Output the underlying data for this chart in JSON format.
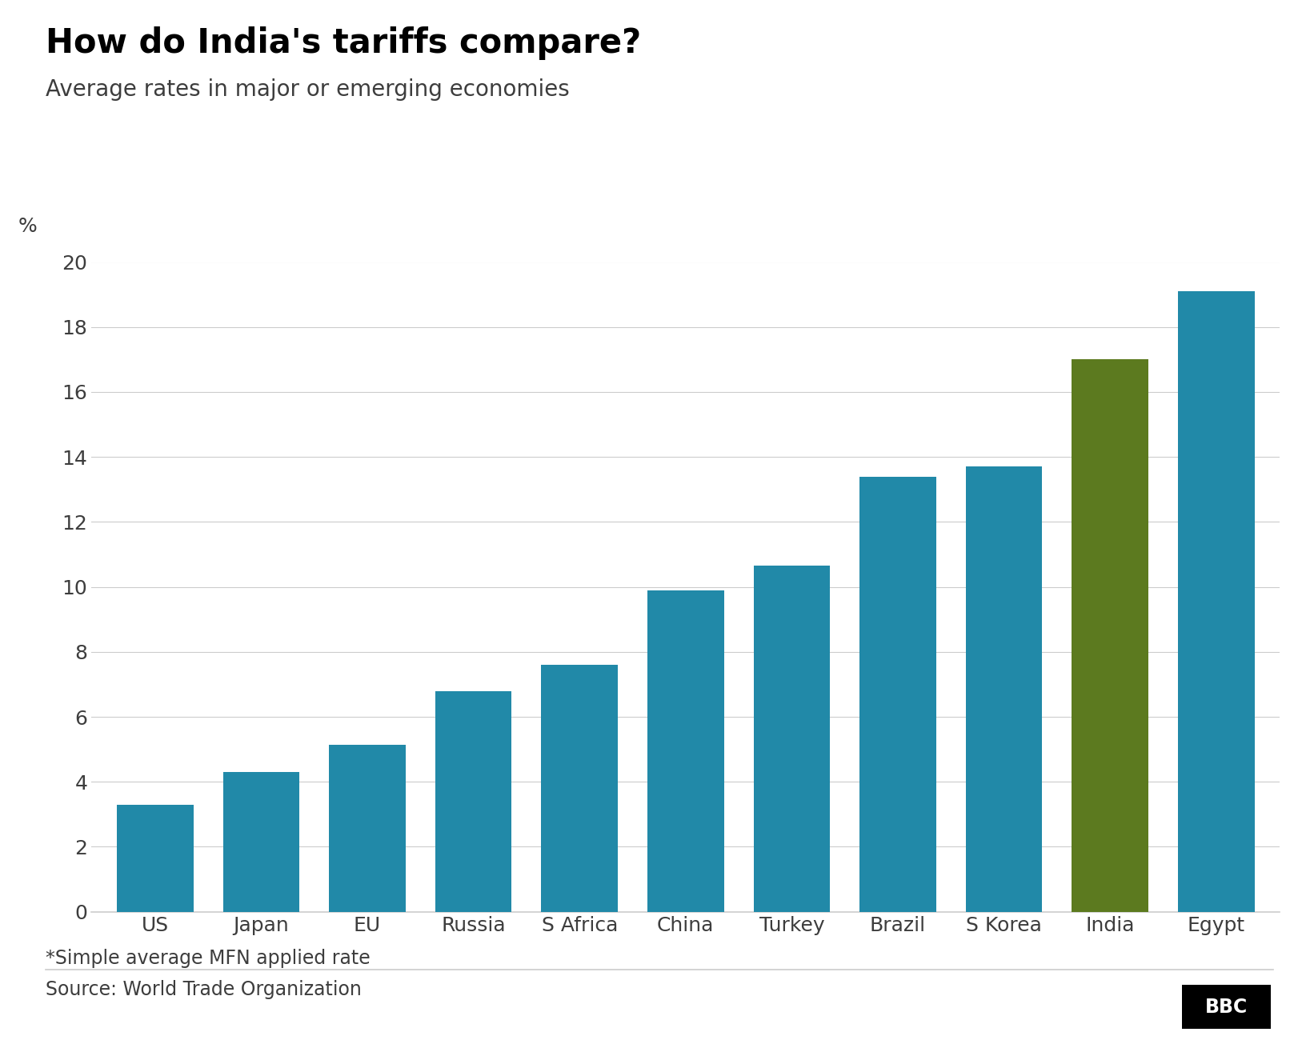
{
  "title": "How do India's tariffs compare?",
  "subtitle": "Average rates in major or emerging economies",
  "footnote": "*Simple average MFN applied rate",
  "source": "Source: World Trade Organization",
  "categories": [
    "US",
    "Japan",
    "EU",
    "Russia",
    "S Africa",
    "China",
    "Turkey",
    "Brazil",
    "S Korea",
    "India",
    "Egypt"
  ],
  "values": [
    3.3,
    4.3,
    5.15,
    6.8,
    7.6,
    9.9,
    10.65,
    13.4,
    13.7,
    17.0,
    19.1
  ],
  "bar_colors": [
    "#2189A8",
    "#2189A8",
    "#2189A8",
    "#2189A8",
    "#2189A8",
    "#2189A8",
    "#2189A8",
    "#2189A8",
    "#2189A8",
    "#5C7A1F",
    "#2189A8"
  ],
  "ylabel": "%",
  "ylim": [
    0,
    20
  ],
  "yticks": [
    0,
    2,
    4,
    6,
    8,
    10,
    12,
    14,
    16,
    18,
    20
  ],
  "background_color": "#ffffff",
  "title_fontsize": 30,
  "subtitle_fontsize": 20,
  "tick_fontsize": 18,
  "footnote_fontsize": 17,
  "source_fontsize": 17,
  "bbc_logo_text": "BBC",
  "bbc_logo_bg": "#000000",
  "bbc_logo_color": "#ffffff",
  "grid_color": "#cccccc",
  "text_color": "#3d3d3d",
  "bar_width": 0.72
}
